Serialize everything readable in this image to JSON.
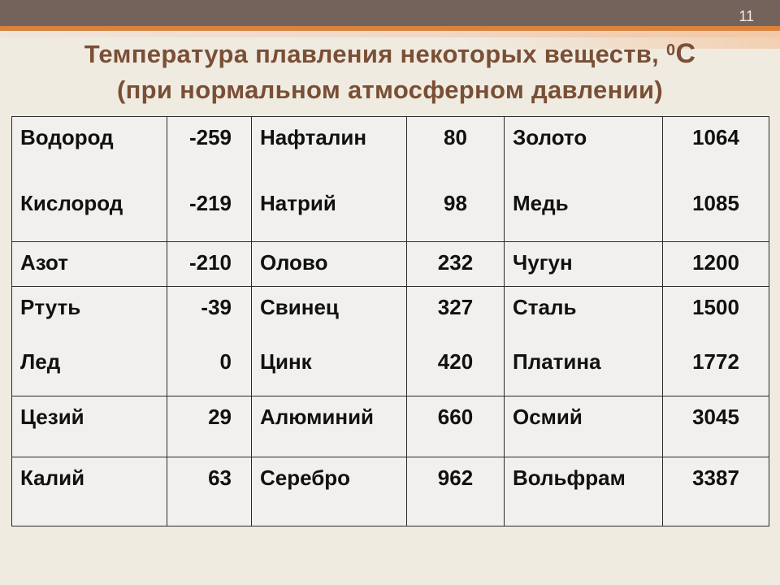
{
  "page_number": "11",
  "title": {
    "line1": "Температура плавления некоторых веществ,",
    "degree": "0",
    "unit": "С",
    "line2": "(при нормальном атмосферном давлении)"
  },
  "table": {
    "rows": [
      {
        "cells": [
          {
            "names": [
              "Водород",
              "Кислород"
            ],
            "values": [
              "-259",
              "-219"
            ]
          },
          {
            "names": [
              "Нафталин",
              "Натрий"
            ],
            "values": [
              "80",
              "98"
            ]
          },
          {
            "names": [
              "Золото",
              "Медь"
            ],
            "values": [
              "1064",
              "1085"
            ]
          }
        ]
      },
      {
        "cells": [
          {
            "names": [
              "Азот"
            ],
            "values": [
              "-210"
            ]
          },
          {
            "names": [
              "Олово"
            ],
            "values": [
              "232"
            ]
          },
          {
            "names": [
              "Чугун"
            ],
            "values": [
              "1200"
            ]
          }
        ]
      },
      {
        "cells": [
          {
            "names": [
              "Ртуть",
              "Лед"
            ],
            "values": [
              "-39",
              "0"
            ]
          },
          {
            "names": [
              "Свинец",
              "Цинк"
            ],
            "values": [
              "327",
              "420"
            ]
          },
          {
            "names": [
              "Сталь",
              "Платина"
            ],
            "values": [
              "1500",
              "1772"
            ]
          }
        ]
      },
      {
        "cells": [
          {
            "names": [
              "Цезий"
            ],
            "values": [
              "29"
            ]
          },
          {
            "names": [
              "Алюминий"
            ],
            "values": [
              "660"
            ]
          },
          {
            "names": [
              "Осмий"
            ],
            "values": [
              "3045"
            ]
          }
        ]
      },
      {
        "cells": [
          {
            "names": [
              "Калий"
            ],
            "values": [
              "63"
            ]
          },
          {
            "names": [
              "Серебро"
            ],
            "values": [
              "962"
            ]
          },
          {
            "names": [
              "Вольфрам"
            ],
            "values": [
              "3387"
            ]
          }
        ]
      }
    ]
  }
}
